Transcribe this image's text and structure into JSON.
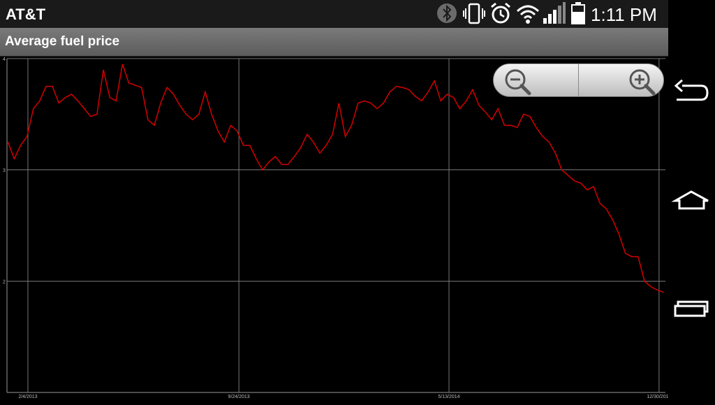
{
  "status_bar": {
    "carrier": "AT&T",
    "time": "1:11 PM",
    "icons": [
      "bluetooth-icon",
      "vibrate-icon",
      "alarm-icon",
      "wifi-icon",
      "signal-icon",
      "battery-icon"
    ]
  },
  "app": {
    "title": "Average fuel price"
  },
  "zoom": {
    "out_icon": "zoom-out-icon",
    "in_icon": "zoom-in-icon"
  },
  "navigation": {
    "icons": [
      "back-icon",
      "home-icon",
      "recent-apps-icon"
    ]
  },
  "colors": {
    "line": "#d40000",
    "grid": "#777777",
    "background": "#000000"
  },
  "chart_data": {
    "type": "line",
    "title": "",
    "xlabel": "",
    "ylabel": "",
    "x_ticks": [
      "2/4/2013",
      "9/24/2013",
      "5/13/2014",
      "12/30/2014"
    ],
    "y_ticks": [
      "2",
      "3",
      "4"
    ],
    "ylim": [
      1,
      4
    ],
    "grid": true,
    "series": [
      {
        "x": [
          "1/13/2013",
          "1/20/2013",
          "1/27/2013",
          "2/3/2013",
          "2/10/2013",
          "2/17/2013",
          "2/24/2013",
          "3/3/2013",
          "3/10/2013",
          "3/17/2013",
          "3/24/2013",
          "3/31/2013",
          "4/7/2013",
          "4/14/2013",
          "4/21/2013",
          "4/28/2013",
          "5/5/2013",
          "5/12/2013",
          "5/19/2013",
          "5/26/2013",
          "6/2/2013",
          "6/9/2013",
          "6/16/2013",
          "6/23/2013",
          "6/30/2013",
          "7/7/2013",
          "7/14/2013",
          "7/21/2013",
          "7/28/2013",
          "8/4/2013",
          "8/11/2013",
          "8/18/2013",
          "8/25/2013",
          "9/1/2013",
          "9/8/2013",
          "9/15/2013",
          "9/22/2013",
          "9/29/2013",
          "10/6/2013",
          "10/13/2013",
          "10/20/2013",
          "10/27/2013",
          "11/3/2013",
          "11/10/2013",
          "11/17/2013",
          "11/24/2013",
          "12/1/2013",
          "12/8/2013",
          "12/15/2013",
          "12/22/2013",
          "12/29/2013",
          "1/5/2014",
          "1/12/2014",
          "1/19/2014",
          "1/26/2014",
          "2/2/2014",
          "2/9/2014",
          "2/16/2014",
          "2/23/2014",
          "3/2/2014",
          "3/9/2014",
          "3/16/2014",
          "3/23/2014",
          "3/30/2014",
          "4/6/2014",
          "4/13/2014",
          "4/20/2014",
          "4/27/2014",
          "5/4/2014",
          "5/11/2014",
          "5/18/2014",
          "5/25/2014",
          "6/1/2014",
          "6/8/2014",
          "6/15/2014",
          "6/22/2014",
          "6/29/2014",
          "7/6/2014",
          "7/13/2014",
          "7/20/2014",
          "7/27/2014",
          "8/3/2014",
          "8/10/2014",
          "8/17/2014",
          "8/24/2014",
          "8/31/2014",
          "9/7/2014",
          "9/14/2014",
          "9/21/2014",
          "9/28/2014",
          "10/5/2014",
          "10/12/2014",
          "10/19/2014",
          "10/26/2014",
          "11/2/2014",
          "11/9/2014",
          "11/16/2014",
          "11/23/2014",
          "11/30/2014",
          "12/7/2014",
          "12/14/2014",
          "12/21/2014",
          "12/28/2014",
          "1/4/2015"
        ],
        "values": [
          3.25,
          3.1,
          3.22,
          3.3,
          3.55,
          3.62,
          3.75,
          3.75,
          3.6,
          3.65,
          3.68,
          3.62,
          3.55,
          3.48,
          3.5,
          3.9,
          3.65,
          3.62,
          3.95,
          3.78,
          3.76,
          3.74,
          3.45,
          3.4,
          3.6,
          3.74,
          3.68,
          3.58,
          3.5,
          3.45,
          3.5,
          3.7,
          3.5,
          3.35,
          3.25,
          3.4,
          3.35,
          3.22,
          3.22,
          3.1,
          3.0,
          3.07,
          3.12,
          3.05,
          3.05,
          3.12,
          3.2,
          3.32,
          3.25,
          3.15,
          3.22,
          3.32,
          3.6,
          3.3,
          3.4,
          3.6,
          3.62,
          3.6,
          3.55,
          3.6,
          3.7,
          3.75,
          3.74,
          3.72,
          3.66,
          3.62,
          3.7,
          3.8,
          3.62,
          3.68,
          3.65,
          3.55,
          3.62,
          3.72,
          3.58,
          3.52,
          3.45,
          3.55,
          3.4,
          3.4,
          3.38,
          3.5,
          3.48,
          3.38,
          3.3,
          3.25,
          3.15,
          3.0,
          2.95,
          2.9,
          2.88,
          2.82,
          2.85,
          2.7,
          2.65,
          2.55,
          2.42,
          2.25,
          2.22,
          2.22,
          2.0,
          1.95,
          1.92,
          1.9
        ]
      }
    ]
  }
}
